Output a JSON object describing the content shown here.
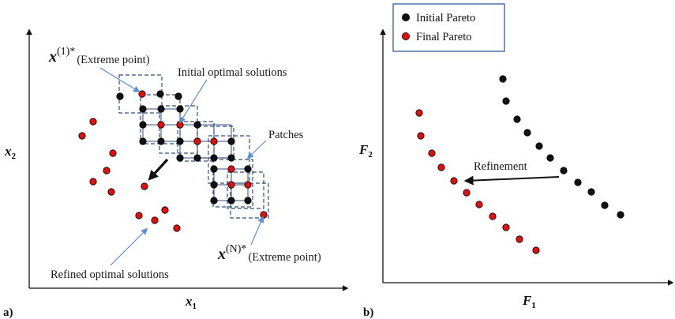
{
  "panel_a": {
    "panel_label": "a)",
    "x_axis": {
      "symbol": "x",
      "subscript": "1"
    },
    "y_axis": {
      "symbol": "x",
      "subscript": "2"
    },
    "extreme_1": {
      "symbol": "x",
      "superscript": "(1)*",
      "note": "(Extreme point)"
    },
    "extreme_n": {
      "symbol": "x",
      "superscript": "(N)*",
      "note": "(Extreme point)"
    },
    "annotations": {
      "initial": "Initial optimal solutions",
      "patches": "Patches",
      "refined": "Refined optimal solutions"
    },
    "colors": {
      "initial": "#111111",
      "final": "#e01010",
      "patch": "#2f4f7f",
      "arrow": "#5b8fd0"
    }
  },
  "panel_b": {
    "panel_label": "b)",
    "x_axis": {
      "symbol": "F",
      "subscript": "1"
    },
    "y_axis": {
      "symbol": "F",
      "subscript": "2"
    },
    "legend": [
      {
        "label": "Initial Pareto",
        "color": "#111111"
      },
      {
        "label": "Final Pareto",
        "color": "#e01010"
      }
    ],
    "arrow_label": "Refinement"
  }
}
